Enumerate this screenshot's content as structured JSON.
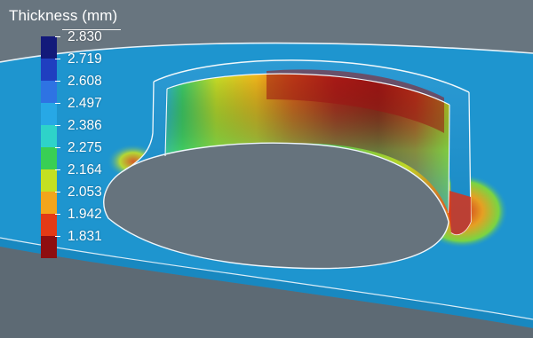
{
  "legend": {
    "title": "Thickness (mm)",
    "ticks": [
      "2.830",
      "2.719",
      "2.608",
      "2.497",
      "2.386",
      "2.275",
      "2.164",
      "2.053",
      "1.942",
      "1.831"
    ],
    "colors": [
      "#131a7a",
      "#1f3fc0",
      "#2e73e3",
      "#27a8e6",
      "#2ed3c9",
      "#39cf54",
      "#c4e022",
      "#f3a51b",
      "#e33a16",
      "#8e0e10"
    ]
  },
  "colors": {
    "background": "#68757f",
    "sheet": "#1e95cf",
    "edge": "#e8f2f8"
  }
}
